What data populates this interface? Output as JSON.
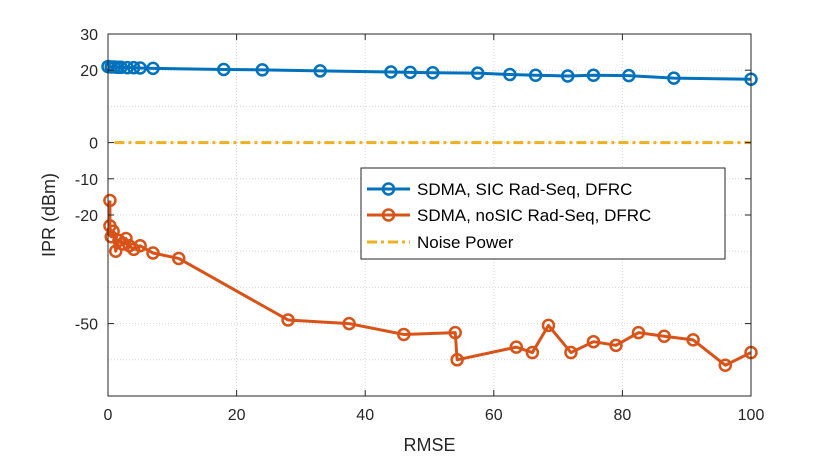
{
  "chart_data": {
    "type": "line",
    "title": "",
    "xlabel": "RMSE",
    "ylabel": "IPR (dBm)",
    "xlim": [
      0,
      100
    ],
    "ylim": [
      -70,
      30
    ],
    "xticks": [
      0,
      20,
      40,
      60,
      80,
      100
    ],
    "yticks": [
      30,
      20,
      0,
      -10,
      -20,
      -50
    ],
    "grid": true,
    "legend_position": "center-right",
    "series": [
      {
        "name": "SDMA, SIC Rad-Seq, DFRC",
        "color": "#0072BD",
        "line_style": "solid",
        "marker": "circle",
        "x": [
          0,
          0.5,
          1,
          1.5,
          2,
          3,
          4,
          5,
          7,
          18,
          24,
          33,
          44,
          47,
          50.5,
          57.5,
          62.5,
          66.5,
          71.5,
          75.5,
          81,
          88,
          100
        ],
        "y": [
          21,
          20.9,
          20.9,
          20.8,
          20.8,
          20.7,
          20.7,
          20.6,
          20.5,
          20.2,
          20.1,
          19.8,
          19.5,
          19.4,
          19.3,
          19.2,
          18.8,
          18.6,
          18.4,
          18.6,
          18.5,
          17.8,
          17.5
        ]
      },
      {
        "name": "SDMA, noSIC Rad-Seq, DFRC",
        "color": "#D95319",
        "line_style": "solid",
        "marker": "circle",
        "x": [
          0.3,
          0.3,
          0.5,
          0.8,
          1.2,
          1.7,
          2.2,
          2.8,
          3.3,
          4,
          5,
          7,
          11,
          28,
          37.5,
          46,
          54,
          54.3,
          63.5,
          66,
          68.5,
          72,
          75.5,
          79,
          82.5,
          86.5,
          91,
          96,
          100
        ],
        "y": [
          -16,
          -23,
          -26,
          -24.5,
          -30,
          -27,
          -28,
          -26.5,
          -28.5,
          -29.5,
          -28.5,
          -30.5,
          -32,
          -49,
          -50,
          -53,
          -52.5,
          -60,
          -56.5,
          -58,
          -50.5,
          -58,
          -55,
          -56,
          -52.5,
          -53.5,
          -54.5,
          -61.5,
          -58
        ]
      },
      {
        "name": "Noise Power",
        "color": "#EDB120",
        "line_style": "dash-dot",
        "marker": "none",
        "x": [
          1,
          100
        ],
        "y": [
          0,
          0
        ]
      }
    ]
  }
}
